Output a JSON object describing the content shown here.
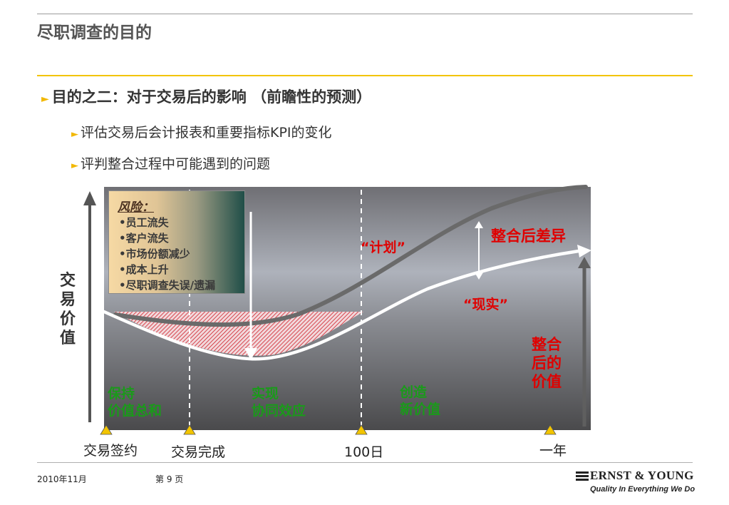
{
  "slide": {
    "title": "尽职调查的目的",
    "bullet_main": "目的之二：对于交易后的影响 （前瞻性的预测）",
    "sub_bullets": [
      "评估交易后会计报表和重要指标KPI的变化",
      "评判整合过程中可能遇到的问题"
    ]
  },
  "chart": {
    "y_axis_label": "交易价值",
    "risk_box": {
      "title": "风险：",
      "items": [
        "•员工流失",
        "•客户流失",
        "•市场份额减少",
        "•成本上升",
        "•尽职调查失误/遗漏"
      ]
    },
    "labels": {
      "plan": "“计划”",
      "reality": "“现实”",
      "post_integration_gap": "整合后差异",
      "post_integration_value": [
        "整合",
        "后的",
        "价值"
      ]
    },
    "phases": [
      {
        "line1": "保持",
        "line2": "价值总和"
      },
      {
        "line1": "实现",
        "line2": "协同效应"
      },
      {
        "line1": "创造",
        "line2": "新价值"
      }
    ],
    "milestones": [
      "交易签约",
      "交易完成",
      "100日",
      "一年"
    ]
  },
  "colors": {
    "accent_yellow": "#f2b800",
    "highlight_red": "#e00000",
    "phase_green": "#1a9a1a"
  },
  "footer": {
    "date": "2010年11月",
    "page": "第 9 页",
    "brand": "ERNST & YOUNG",
    "tagline": "Quality In Everything We Do"
  }
}
